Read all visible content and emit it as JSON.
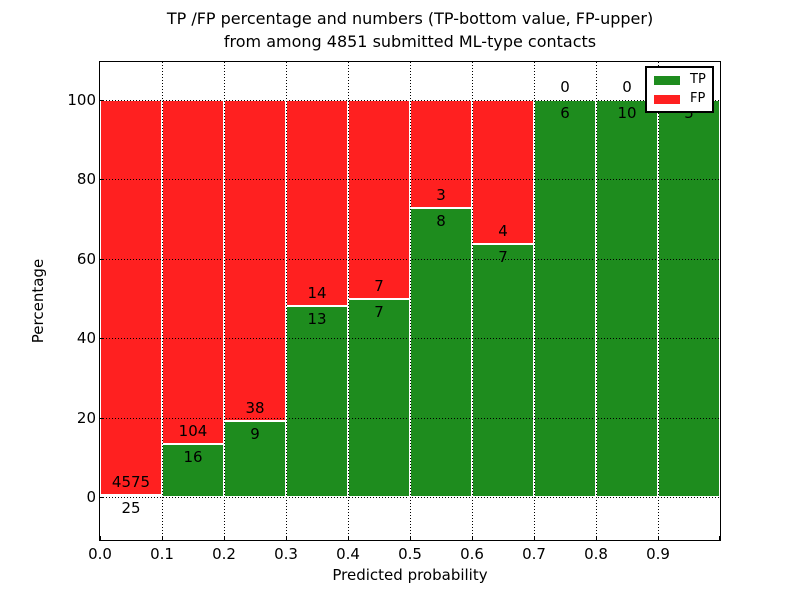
{
  "title": {
    "line1": "TP /FP percentage and numbers (TP-bottom value, FP-upper)",
    "line2": "from among 4851 submitted ML-type contacts"
  },
  "axes": {
    "x_label": "Predicted probability",
    "y_label": "Percentage",
    "x_ticks": [
      "0.0",
      "0.1",
      "0.2",
      "0.3",
      "0.4",
      "0.5",
      "0.6",
      "0.7",
      "0.8",
      "0.9"
    ],
    "y_ticks": [
      0,
      20,
      40,
      60,
      80,
      100
    ],
    "y_lim": [
      -11,
      110
    ],
    "grid": "dotted"
  },
  "legend": {
    "position": "upper-right",
    "items": [
      {
        "label": "TP",
        "color": "#1e8c1e"
      },
      {
        "label": "FP",
        "color": "#ff2020"
      }
    ]
  },
  "colors": {
    "tp_green": "#1e8c1e",
    "fp_red": "#ff2020",
    "bar_edge": "#ffffff",
    "grid": "#000000",
    "text": "#000000",
    "background": "#ffffff"
  },
  "chart_data": {
    "type": "bar",
    "stacked": true,
    "title": "TP /FP percentage and numbers (TP-bottom value, FP-upper) from among 4851 submitted ML-type contacts",
    "xlabel": "Predicted probability",
    "ylabel": "Percentage",
    "categories": [
      "0.0",
      "0.1",
      "0.2",
      "0.3",
      "0.4",
      "0.5",
      "0.6",
      "0.7",
      "0.8",
      "0.9"
    ],
    "bin_width": 0.1,
    "series": [
      {
        "name": "TP",
        "color": "#1e8c1e",
        "values": [
          25,
          16,
          9,
          13,
          7,
          8,
          7,
          6,
          10,
          5
        ]
      },
      {
        "name": "FP",
        "color": "#ff2020",
        "values": [
          4575,
          104,
          38,
          14,
          7,
          3,
          4,
          0,
          0,
          0
        ]
      }
    ],
    "tp_percent": [
      0.5,
      13.3,
      19.1,
      48.1,
      50.0,
      72.7,
      63.6,
      100.0,
      100.0,
      100.0
    ],
    "total_contacts": 4851,
    "ylim": [
      -11,
      110
    ],
    "grid": true,
    "legend_position": "upper-right"
  }
}
